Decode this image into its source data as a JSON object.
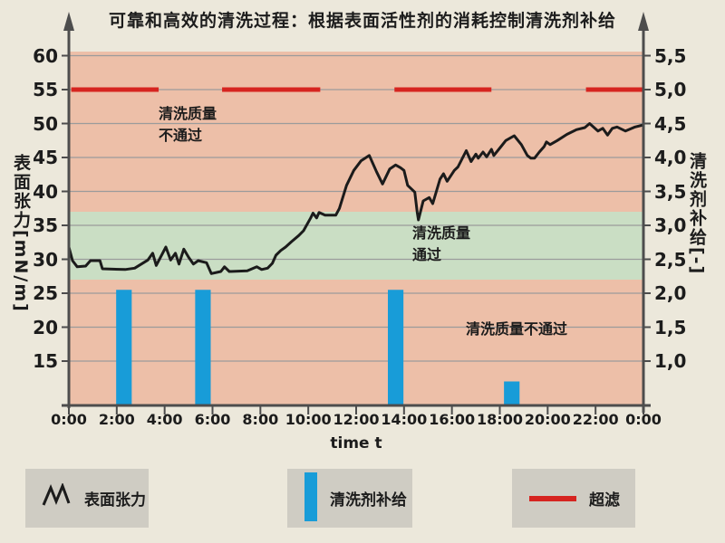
{
  "title": "可靠和高效的清洗过程：根据表面活性剂的消耗控制清洗剂补给",
  "axes": {
    "left": {
      "title": "表面张力[mN/m]",
      "ticks": [
        "60",
        "55",
        "50",
        "45",
        "40",
        "35",
        "30",
        "25",
        "20",
        "15"
      ],
      "tick_values": [
        60,
        55,
        50,
        45,
        40,
        35,
        30,
        25,
        20,
        15
      ]
    },
    "right": {
      "title": "清洗剂补给[-]",
      "ticks": [
        "5,5",
        "5,0",
        "4,5",
        "4,0",
        "3,5",
        "3,0",
        "2,5",
        "2,0",
        "1,5",
        "1,0"
      ],
      "tick_values": [
        5.5,
        5.0,
        4.5,
        4.0,
        3.5,
        3.0,
        2.5,
        2.0,
        1.5,
        1.0
      ]
    },
    "x": {
      "title": "time t",
      "ticks": [
        "0:00",
        "2:00",
        "4:00",
        "6:00",
        "8:00",
        "10:00",
        "12:00",
        "14:00",
        "16:00",
        "18:00",
        "20:00",
        "22:00",
        "0:00"
      ],
      "tick_hours": [
        0,
        2,
        4,
        6,
        8,
        10,
        12,
        14,
        16,
        18,
        20,
        22,
        24
      ]
    }
  },
  "zone_labels": {
    "fail_top": {
      "lines": [
        "清洗质量",
        "不通过"
      ]
    },
    "pass": {
      "lines": [
        "清洗质量",
        "通过"
      ]
    },
    "fail_bottom": {
      "lines": [
        "清洗质量不通过"
      ]
    }
  },
  "legend": [
    {
      "label": "表面张力",
      "icon": "zigzag-line-icon"
    },
    {
      "label": "清洗剂补给",
      "icon": "blue-bar-icon"
    },
    {
      "label": "超滤",
      "icon": "red-line-icon"
    }
  ],
  "colors": {
    "background": "#ece8db",
    "zone_fail": "#edbfa8",
    "zone_pass": "#cadec4",
    "bar_blue": "#189cd8",
    "ultrafiltration_red": "#d62420",
    "line_black": "#1b1b1b",
    "axis_gray": "#4d4d4d",
    "grid_gray": "#9b9b9b",
    "legend_gray": "#cfccc3"
  },
  "chart_data": {
    "type": "line+bar",
    "title": "可靠和高效的清洗过程：根据表面活性剂的消耗控制清洗剂补给",
    "xlabel": "time t",
    "x_unit": "hours",
    "x_range": [
      0,
      24
    ],
    "left_axis": {
      "label": "表面张力 [mN/m]",
      "range": [
        15,
        60
      ]
    },
    "right_axis": {
      "label": "清洗剂补给 [-]",
      "range": [
        1.0,
        5.5
      ]
    },
    "grid": true,
    "zones": [
      {
        "label": "清洗质量不通过",
        "axis": "left",
        "from": 37,
        "to": 61,
        "color": "#edbfa8"
      },
      {
        "label": "清洗质量通过",
        "axis": "left",
        "from": 27,
        "to": 37,
        "color": "#cadec4"
      },
      {
        "label": "清洗质量不通过",
        "axis": "left",
        "from": 8.5,
        "to": 27,
        "color": "#edbfa8"
      }
    ],
    "series": [
      {
        "name": "表面张力",
        "type": "line",
        "axis": "left",
        "color": "#1b1b1b",
        "points": [
          [
            0,
            31.8
          ],
          [
            0.15,
            29.8
          ],
          [
            0.35,
            28.9
          ],
          [
            0.7,
            29.0
          ],
          [
            0.9,
            29.8
          ],
          [
            1.3,
            29.8
          ],
          [
            1.4,
            28.6
          ],
          [
            2.35,
            28.5
          ],
          [
            2.75,
            28.7
          ],
          [
            3.3,
            29.9
          ],
          [
            3.5,
            30.9
          ],
          [
            3.65,
            29.1
          ],
          [
            4.05,
            31.8
          ],
          [
            4.25,
            29.9
          ],
          [
            4.45,
            30.9
          ],
          [
            4.6,
            29.3
          ],
          [
            4.8,
            31.5
          ],
          [
            5.0,
            30.3
          ],
          [
            5.2,
            29.3
          ],
          [
            5.4,
            29.8
          ],
          [
            5.75,
            29.5
          ],
          [
            5.95,
            27.9
          ],
          [
            6.35,
            28.2
          ],
          [
            6.5,
            28.9
          ],
          [
            6.7,
            28.2
          ],
          [
            7.45,
            28.3
          ],
          [
            7.85,
            28.9
          ],
          [
            8.05,
            28.5
          ],
          [
            8.3,
            28.7
          ],
          [
            8.5,
            29.4
          ],
          [
            8.65,
            30.6
          ],
          [
            8.85,
            31.3
          ],
          [
            9.05,
            31.8
          ],
          [
            9.3,
            32.6
          ],
          [
            9.6,
            33.5
          ],
          [
            9.8,
            34.2
          ],
          [
            10.1,
            36.1
          ],
          [
            10.2,
            36.8
          ],
          [
            10.35,
            36.1
          ],
          [
            10.45,
            36.9
          ],
          [
            10.7,
            36.5
          ],
          [
            11.15,
            36.5
          ],
          [
            11.3,
            37.5
          ],
          [
            11.6,
            40.9
          ],
          [
            11.9,
            43.1
          ],
          [
            12.2,
            44.5
          ],
          [
            12.55,
            45.3
          ],
          [
            12.85,
            42.9
          ],
          [
            13.1,
            41.1
          ],
          [
            13.4,
            43.3
          ],
          [
            13.65,
            43.9
          ],
          [
            13.85,
            43.5
          ],
          [
            14.0,
            43.1
          ],
          [
            14.15,
            40.9
          ],
          [
            14.45,
            39.9
          ],
          [
            14.55,
            36.9
          ],
          [
            14.6,
            35.8
          ],
          [
            14.8,
            38.6
          ],
          [
            15.05,
            39.1
          ],
          [
            15.2,
            38.2
          ],
          [
            15.5,
            41.8
          ],
          [
            15.65,
            42.6
          ],
          [
            15.8,
            41.5
          ],
          [
            16.1,
            43.1
          ],
          [
            16.25,
            43.6
          ],
          [
            16.6,
            46.0
          ],
          [
            16.8,
            44.4
          ],
          [
            17.0,
            45.5
          ],
          [
            17.1,
            44.9
          ],
          [
            17.3,
            45.8
          ],
          [
            17.45,
            45.1
          ],
          [
            17.65,
            46.2
          ],
          [
            17.75,
            45.3
          ],
          [
            18.05,
            46.6
          ],
          [
            18.25,
            47.5
          ],
          [
            18.6,
            48.2
          ],
          [
            18.9,
            46.9
          ],
          [
            19.15,
            45.3
          ],
          [
            19.3,
            44.9
          ],
          [
            19.45,
            44.9
          ],
          [
            19.65,
            45.8
          ],
          [
            19.85,
            46.6
          ],
          [
            19.95,
            47.3
          ],
          [
            20.1,
            46.9
          ],
          [
            20.4,
            47.5
          ],
          [
            20.8,
            48.4
          ],
          [
            21.2,
            49.1
          ],
          [
            21.55,
            49.4
          ],
          [
            21.75,
            50.0
          ],
          [
            22.1,
            48.9
          ],
          [
            22.3,
            49.3
          ],
          [
            22.5,
            48.3
          ],
          [
            22.7,
            49.3
          ],
          [
            22.9,
            49.5
          ],
          [
            23.25,
            48.9
          ],
          [
            23.65,
            49.5
          ],
          [
            24,
            49.8
          ]
        ]
      },
      {
        "name": "清洗剂补给",
        "type": "bar",
        "axis": "right",
        "color": "#189cd8",
        "bar_width_hours": 0.65,
        "bars": [
          {
            "time": 2.3,
            "value": 2.05
          },
          {
            "time": 5.6,
            "value": 2.05
          },
          {
            "time": 13.65,
            "value": 2.05
          },
          {
            "time": 18.5,
            "value": 0.7
          }
        ]
      },
      {
        "name": "超滤",
        "type": "segments",
        "axis": "right",
        "color": "#d62420",
        "value": 5.0,
        "segments": [
          [
            0.1,
            3.75
          ],
          [
            6.4,
            10.5
          ],
          [
            13.6,
            17.65
          ],
          [
            21.6,
            24.0
          ]
        ]
      }
    ]
  }
}
